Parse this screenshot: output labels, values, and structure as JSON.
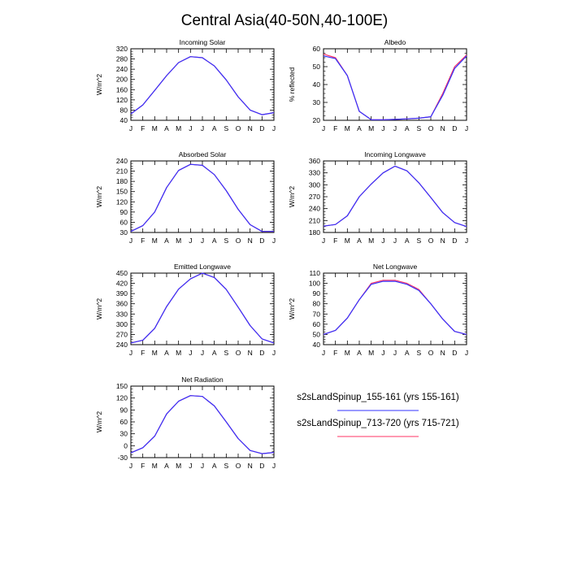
{
  "title": "Central Asia(40-50N,40-100E)",
  "colors": {
    "series_1": "#3333ff",
    "series_2": "#ff3366",
    "axis": "#000000"
  },
  "legend": {
    "placement": "lower-right",
    "entries": [
      {
        "label": "s2sLandSpinup_155-161 (yrs 155-161)",
        "color": "#3333ff"
      },
      {
        "label": "s2sLandSpinup_713-720 (yrs 715-721)",
        "color": "#ff3366"
      }
    ]
  },
  "chart_data": [
    {
      "type": "line",
      "title": "Incoming Solar",
      "xlabel": "",
      "ylabel": "W/m^2",
      "categories": [
        "J",
        "F",
        "M",
        "A",
        "M",
        "J",
        "J",
        "A",
        "S",
        "O",
        "N",
        "D",
        "J"
      ],
      "ylim": [
        40,
        320
      ],
      "yticks": [
        40,
        80,
        120,
        160,
        200,
        240,
        280,
        320
      ],
      "grid": false,
      "series": [
        {
          "name": "s2sLandSpinup_155-161 (yrs 155-161)",
          "values": [
            65,
            100,
            157,
            215,
            266,
            289,
            285,
            253,
            198,
            132,
            80,
            62,
            70
          ]
        },
        {
          "name": "s2sLandSpinup_713-720 (yrs 715-721)",
          "values": [
            65,
            100,
            157,
            215,
            266,
            289,
            285,
            253,
            198,
            132,
            80,
            62,
            70
          ]
        }
      ]
    },
    {
      "type": "line",
      "title": "Albedo",
      "xlabel": "",
      "ylabel": "% reflected",
      "categories": [
        "J",
        "F",
        "M",
        "A",
        "M",
        "J",
        "J",
        "A",
        "S",
        "O",
        "N",
        "D",
        "J"
      ],
      "ylim": [
        20,
        60
      ],
      "yticks": [
        20,
        30,
        40,
        50,
        60
      ],
      "grid": false,
      "series": [
        {
          "name": "s2sLandSpinup_155-161 (yrs 155-161)",
          "values": [
            56,
            54.5,
            45,
            25,
            20.3,
            20.3,
            20.5,
            20.8,
            21.2,
            22,
            34,
            49,
            56
          ]
        },
        {
          "name": "s2sLandSpinup_713-720 (yrs 715-721)",
          "values": [
            57,
            55,
            45,
            25,
            20.3,
            20.3,
            20.5,
            20.8,
            21.2,
            22,
            35,
            50,
            56.5
          ]
        }
      ]
    },
    {
      "type": "line",
      "title": "Absorbed Solar",
      "xlabel": "",
      "ylabel": "W/m^2",
      "categories": [
        "J",
        "F",
        "M",
        "A",
        "M",
        "J",
        "J",
        "A",
        "S",
        "O",
        "N",
        "D",
        "J"
      ],
      "ylim": [
        30,
        240
      ],
      "yticks": [
        30,
        60,
        90,
        120,
        150,
        180,
        210,
        240
      ],
      "grid": false,
      "series": [
        {
          "name": "s2sLandSpinup_155-161 (yrs 155-161)",
          "values": [
            33,
            50,
            90,
            162,
            212,
            230,
            227,
            200,
            153,
            98,
            53,
            33,
            33
          ]
        },
        {
          "name": "s2sLandSpinup_713-720 (yrs 715-721)",
          "values": [
            33,
            50,
            90,
            162,
            212,
            230,
            227,
            200,
            153,
            98,
            53,
            33,
            33
          ]
        }
      ]
    },
    {
      "type": "line",
      "title": "Incoming Longwave",
      "xlabel": "",
      "ylabel": "W/m^2",
      "categories": [
        "J",
        "F",
        "M",
        "A",
        "M",
        "J",
        "J",
        "A",
        "S",
        "O",
        "N",
        "D",
        "J"
      ],
      "ylim": [
        180,
        360
      ],
      "yticks": [
        180,
        210,
        240,
        270,
        300,
        330,
        360
      ],
      "grid": false,
      "series": [
        {
          "name": "s2sLandSpinup_155-161 (yrs 155-161)",
          "values": [
            196,
            200,
            222,
            270,
            302,
            330,
            347,
            335,
            305,
            268,
            230,
            205,
            195
          ]
        },
        {
          "name": "s2sLandSpinup_713-720 (yrs 715-721)",
          "values": [
            196,
            200,
            222,
            270,
            302,
            330,
            347,
            335,
            305,
            268,
            230,
            205,
            195
          ]
        }
      ]
    },
    {
      "type": "line",
      "title": "Emitted Longwave",
      "xlabel": "",
      "ylabel": "W/m^2",
      "categories": [
        "J",
        "F",
        "M",
        "A",
        "M",
        "J",
        "J",
        "A",
        "S",
        "O",
        "N",
        "D",
        "J"
      ],
      "ylim": [
        240,
        450
      ],
      "yticks": [
        240,
        270,
        300,
        330,
        360,
        390,
        420,
        450
      ],
      "grid": false,
      "series": [
        {
          "name": "s2sLandSpinup_155-161 (yrs 155-161)",
          "values": [
            245,
            253,
            288,
            352,
            403,
            433,
            450,
            437,
            402,
            350,
            296,
            257,
            245
          ]
        },
        {
          "name": "s2sLandSpinup_713-720 (yrs 715-721)",
          "values": [
            245,
            253,
            288,
            352,
            403,
            433,
            450,
            437,
            402,
            350,
            296,
            257,
            245
          ]
        }
      ]
    },
    {
      "type": "line",
      "title": "Net Longwave",
      "xlabel": "",
      "ylabel": "W/m^2",
      "categories": [
        "J",
        "F",
        "M",
        "A",
        "M",
        "J",
        "J",
        "A",
        "S",
        "O",
        "N",
        "D",
        "J"
      ],
      "ylim": [
        40,
        110
      ],
      "yticks": [
        40,
        50,
        60,
        70,
        80,
        90,
        100,
        110
      ],
      "grid": false,
      "series": [
        {
          "name": "s2sLandSpinup_155-161 (yrs 155-161)",
          "values": [
            50,
            54,
            66,
            84,
            99,
            102,
            102,
            99,
            93,
            80,
            65,
            53,
            50
          ]
        },
        {
          "name": "s2sLandSpinup_713-720 (yrs 715-721)",
          "values": [
            50,
            54,
            66,
            84,
            100,
            103,
            103,
            100,
            94,
            80,
            65,
            53,
            50
          ]
        }
      ]
    },
    {
      "type": "line",
      "title": "Net Radiation",
      "xlabel": "",
      "ylabel": "W/m^2",
      "categories": [
        "J",
        "F",
        "M",
        "A",
        "M",
        "J",
        "J",
        "A",
        "S",
        "O",
        "N",
        "D",
        "J"
      ],
      "ylim": [
        -30,
        150
      ],
      "yticks": [
        -30,
        0,
        30,
        60,
        90,
        120,
        150
      ],
      "grid": false,
      "series": [
        {
          "name": "s2sLandSpinup_155-161 (yrs 155-161)",
          "values": [
            -18,
            -5,
            24,
            80,
            112,
            126,
            124,
            100,
            60,
            18,
            -12,
            -20,
            -17
          ]
        },
        {
          "name": "s2sLandSpinup_713-720 (yrs 715-721)",
          "values": [
            -18,
            -5,
            24,
            80,
            112,
            126,
            124,
            100,
            60,
            18,
            -12,
            -20,
            -17
          ]
        }
      ]
    }
  ]
}
